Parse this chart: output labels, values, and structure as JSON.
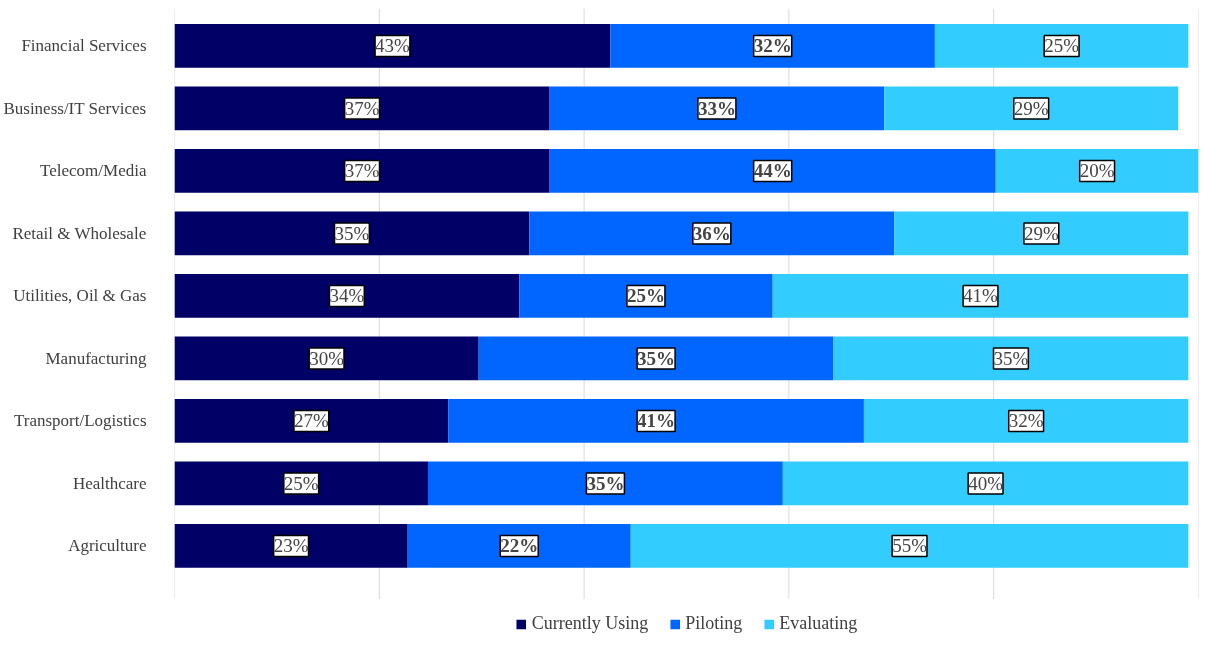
{
  "chart_data": {
    "type": "bar",
    "orientation": "horizontal",
    "stacked": true,
    "categories": [
      "Financial Services",
      "Business/IT Services",
      "Telecom/Media",
      "Retail & Wholesale",
      "Utilities, Oil & Gas",
      "Manufacturing",
      "Transport/Logistics",
      "Healthcare",
      "Agriculture"
    ],
    "series": [
      {
        "name": "Currently Using",
        "color": "#000066",
        "values": [
          43,
          37,
          37,
          35,
          34,
          30,
          27,
          25,
          23
        ],
        "value_labels": [
          "43%",
          "37%",
          "37%",
          "35%",
          "34%",
          "30%",
          "27%",
          "25%",
          "23%"
        ]
      },
      {
        "name": "Piloting",
        "color": "#0066ff",
        "values": [
          32,
          33,
          44,
          36,
          25,
          35,
          41,
          35,
          22
        ],
        "value_labels": [
          "32%",
          "33%",
          "44%",
          "36%",
          "25%",
          "35%",
          "41%",
          "35%",
          "22%"
        ]
      },
      {
        "name": "Evaluating",
        "color": "#33ccff",
        "values": [
          25,
          29,
          20,
          29,
          41,
          35,
          32,
          40,
          55
        ],
        "value_labels": [
          "25%",
          "29%",
          "20%",
          "29%",
          "41%",
          "35%",
          "32%",
          "40%",
          "55%"
        ]
      }
    ],
    "tick_labels": "y",
    "grid": "x",
    "legend": "bottom"
  }
}
